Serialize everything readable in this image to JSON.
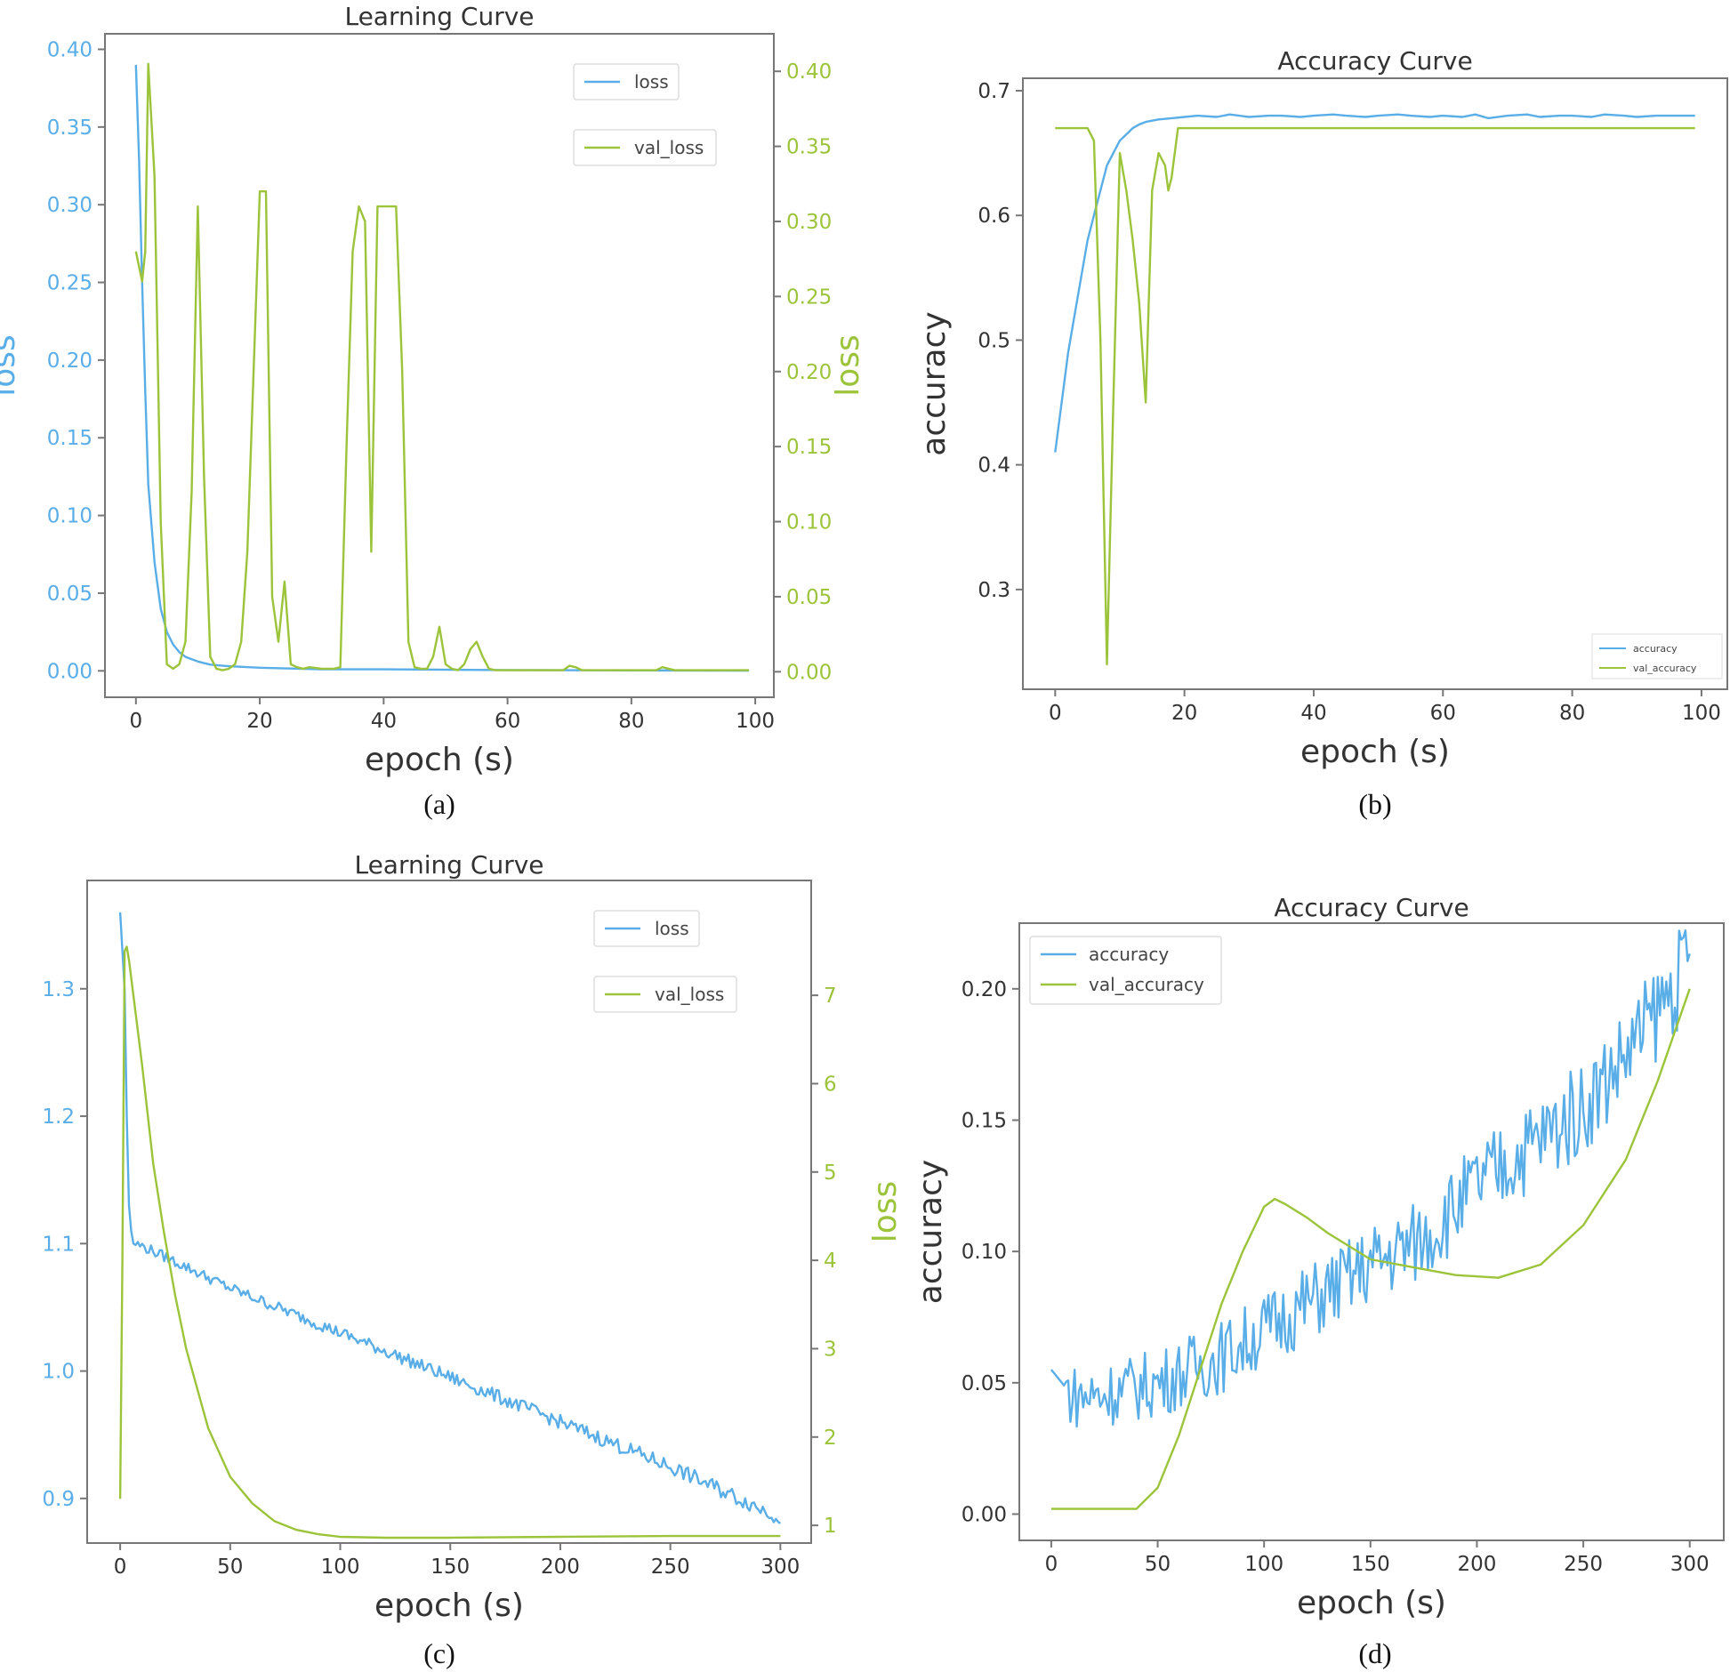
{
  "colors": {
    "loss": "#5aaee8",
    "val": "#9cc43a",
    "axis": "#777777",
    "text": "#333333"
  },
  "chart_data": [
    {
      "panel": "(a)",
      "type": "line",
      "title": "Learning Curve",
      "xlabel": "epoch (s)",
      "ylabel_left": "loss",
      "ylabel_right": "loss",
      "xlim": [
        -5,
        103
      ],
      "ylim_left": [
        -0.017,
        0.41
      ],
      "ylim_right": [
        -0.017,
        0.425
      ],
      "xticks": [
        0,
        20,
        40,
        60,
        80,
        100
      ],
      "yticks_left": [
        0.0,
        0.05,
        0.1,
        0.15,
        0.2,
        0.25,
        0.3,
        0.35,
        0.4
      ],
      "yticks_right": [
        0.0,
        0.05,
        0.1,
        0.15,
        0.2,
        0.25,
        0.3,
        0.35,
        0.4
      ],
      "legend_position": "top-right",
      "series": [
        {
          "name": "loss",
          "axis": "left",
          "color": "loss",
          "x": [
            0,
            0.5,
            1,
            1.5,
            2,
            3,
            4,
            5,
            6,
            7,
            8,
            10,
            12,
            15,
            20,
            30,
            40,
            60,
            80,
            99
          ],
          "y": [
            0.39,
            0.33,
            0.25,
            0.18,
            0.12,
            0.07,
            0.04,
            0.025,
            0.017,
            0.012,
            0.009,
            0.006,
            0.004,
            0.003,
            0.002,
            0.001,
            0.001,
            0.0005,
            0.0003,
            0.0002
          ]
        },
        {
          "name": "val_loss",
          "axis": "right",
          "color": "val",
          "x": [
            0,
            0.5,
            1,
            1.5,
            2,
            3,
            4,
            5,
            6,
            7,
            8,
            9,
            10,
            11,
            12,
            13,
            14,
            15,
            16,
            17,
            18,
            19,
            20,
            21,
            22,
            23,
            24,
            25,
            26,
            27,
            28,
            30,
            32,
            33,
            34,
            35,
            36,
            37,
            38,
            39,
            40,
            41,
            42,
            43,
            44,
            45,
            46,
            47,
            48,
            49,
            50,
            51,
            52,
            53,
            54,
            55,
            56,
            57,
            58,
            60,
            65,
            69,
            70,
            71,
            72,
            75,
            80,
            84,
            85,
            86,
            87,
            90,
            95,
            99
          ],
          "y": [
            0.28,
            0.27,
            0.26,
            0.28,
            0.405,
            0.33,
            0.1,
            0.005,
            0.002,
            0.005,
            0.02,
            0.12,
            0.31,
            0.13,
            0.01,
            0.002,
            0.001,
            0.002,
            0.005,
            0.02,
            0.08,
            0.2,
            0.32,
            0.32,
            0.05,
            0.02,
            0.06,
            0.005,
            0.003,
            0.002,
            0.003,
            0.002,
            0.002,
            0.003,
            0.15,
            0.28,
            0.31,
            0.3,
            0.08,
            0.31,
            0.31,
            0.31,
            0.31,
            0.2,
            0.02,
            0.003,
            0.002,
            0.002,
            0.01,
            0.03,
            0.005,
            0.002,
            0.001,
            0.005,
            0.015,
            0.02,
            0.01,
            0.002,
            0.001,
            0.001,
            0.001,
            0.001,
            0.004,
            0.003,
            0.001,
            0.001,
            0.001,
            0.001,
            0.003,
            0.002,
            0.001,
            0.001,
            0.001,
            0.001
          ]
        }
      ]
    },
    {
      "panel": "(b)",
      "type": "line",
      "title": "Accuracy Curve",
      "xlabel": "epoch (s)",
      "ylabel": "accuracy",
      "xlim": [
        -5,
        104
      ],
      "ylim": [
        0.22,
        0.71
      ],
      "xticks": [
        0,
        20,
        40,
        60,
        80,
        100
      ],
      "yticks": [
        0.3,
        0.4,
        0.5,
        0.6,
        0.7
      ],
      "legend_position": "bottom-right",
      "series": [
        {
          "name": "accuracy",
          "color": "loss",
          "x": [
            0,
            1,
            2,
            3,
            4,
            5,
            6,
            7,
            8,
            9,
            10,
            11,
            12,
            13,
            14,
            15,
            16,
            18,
            20,
            22,
            25,
            27,
            30,
            33,
            35,
            38,
            40,
            43,
            45,
            48,
            50,
            53,
            55,
            58,
            60,
            63,
            65,
            67,
            70,
            73,
            75,
            78,
            80,
            83,
            85,
            88,
            90,
            93,
            95,
            99
          ],
          "y": [
            0.41,
            0.45,
            0.49,
            0.52,
            0.55,
            0.58,
            0.6,
            0.62,
            0.64,
            0.65,
            0.66,
            0.665,
            0.67,
            0.673,
            0.675,
            0.676,
            0.677,
            0.678,
            0.679,
            0.68,
            0.679,
            0.681,
            0.679,
            0.68,
            0.68,
            0.679,
            0.68,
            0.681,
            0.68,
            0.679,
            0.68,
            0.681,
            0.68,
            0.679,
            0.68,
            0.679,
            0.681,
            0.678,
            0.68,
            0.681,
            0.679,
            0.68,
            0.68,
            0.679,
            0.681,
            0.68,
            0.679,
            0.68,
            0.68,
            0.68
          ]
        },
        {
          "name": "val_accuracy",
          "color": "val",
          "x": [
            0,
            5,
            6,
            7,
            8,
            9,
            10,
            11,
            12,
            13,
            14,
            15,
            16,
            17,
            17.5,
            18,
            19,
            20,
            30,
            40,
            60,
            80,
            99
          ],
          "y": [
            0.67,
            0.67,
            0.66,
            0.5,
            0.24,
            0.45,
            0.65,
            0.62,
            0.58,
            0.53,
            0.45,
            0.62,
            0.65,
            0.64,
            0.62,
            0.63,
            0.67,
            0.67,
            0.67,
            0.67,
            0.67,
            0.67,
            0.67
          ]
        }
      ]
    },
    {
      "panel": "(c)",
      "type": "line",
      "title": "Learning Curve",
      "xlabel": "epoch (s)",
      "ylabel_left": "loss",
      "ylabel_right": "loss",
      "xlim": [
        -15,
        314
      ],
      "ylim_left": [
        0.865,
        1.385
      ],
      "ylim_right": [
        0.8,
        8.3
      ],
      "xticks": [
        0,
        50,
        100,
        150,
        200,
        250,
        300
      ],
      "yticks_left": [
        0.9,
        1.0,
        1.1,
        1.2,
        1.3
      ],
      "yticks_right": [
        1,
        2,
        3,
        4,
        5,
        6,
        7
      ],
      "legend_position": "top-right",
      "series": [
        {
          "name": "loss",
          "axis": "left",
          "color": "loss",
          "x": [
            0,
            2,
            3,
            4,
            5,
            6,
            7,
            10,
            20,
            50,
            100,
            150,
            200,
            250,
            300
          ],
          "y": [
            1.36,
            1.3,
            1.2,
            1.13,
            1.11,
            1.1,
            1.1,
            1.098,
            1.09,
            1.065,
            1.03,
            0.995,
            0.96,
            0.925,
            0.885
          ],
          "noise": 0.004
        },
        {
          "name": "val_loss",
          "axis": "right",
          "color": "val",
          "x": [
            0,
            1,
            2,
            3,
            4,
            5,
            10,
            15,
            20,
            25,
            30,
            40,
            50,
            60,
            70,
            80,
            90,
            100,
            120,
            150,
            200,
            250,
            300
          ],
          "y": [
            1.3,
            4.0,
            7.5,
            7.55,
            7.4,
            7.2,
            6.2,
            5.1,
            4.3,
            3.6,
            3.0,
            2.1,
            1.55,
            1.25,
            1.05,
            0.95,
            0.9,
            0.87,
            0.86,
            0.86,
            0.87,
            0.88,
            0.88
          ]
        }
      ]
    },
    {
      "panel": "(d)",
      "type": "line",
      "title": "Accuracy Curve",
      "xlabel": "epoch (s)",
      "ylabel": "accuracy",
      "xlim": [
        -15,
        316
      ],
      "ylim": [
        -0.01,
        0.225
      ],
      "xticks": [
        0,
        50,
        100,
        150,
        200,
        250,
        300
      ],
      "yticks": [
        0.0,
        0.05,
        0.1,
        0.15,
        0.2
      ],
      "legend_position": "top-left",
      "series": [
        {
          "name": "accuracy",
          "color": "loss",
          "x": [
            0,
            10,
            20,
            50,
            80,
            100,
            120,
            150,
            175,
            200,
            225,
            250,
            275,
            300
          ],
          "y": [
            0.055,
            0.045,
            0.045,
            0.05,
            0.06,
            0.07,
            0.08,
            0.095,
            0.105,
            0.125,
            0.14,
            0.155,
            0.18,
            0.21
          ],
          "noise": 0.012
        },
        {
          "name": "val_accuracy",
          "color": "val",
          "x": [
            0,
            40,
            50,
            60,
            70,
            80,
            90,
            100,
            105,
            110,
            120,
            130,
            150,
            170,
            190,
            210,
            230,
            250,
            270,
            285,
            300
          ],
          "y": [
            0.002,
            0.002,
            0.01,
            0.03,
            0.055,
            0.08,
            0.1,
            0.117,
            0.12,
            0.118,
            0.113,
            0.107,
            0.097,
            0.094,
            0.091,
            0.09,
            0.095,
            0.11,
            0.135,
            0.165,
            0.2
          ]
        }
      ]
    }
  ],
  "captions": [
    "(a)",
    "(b)",
    "(c)",
    "(d)"
  ]
}
